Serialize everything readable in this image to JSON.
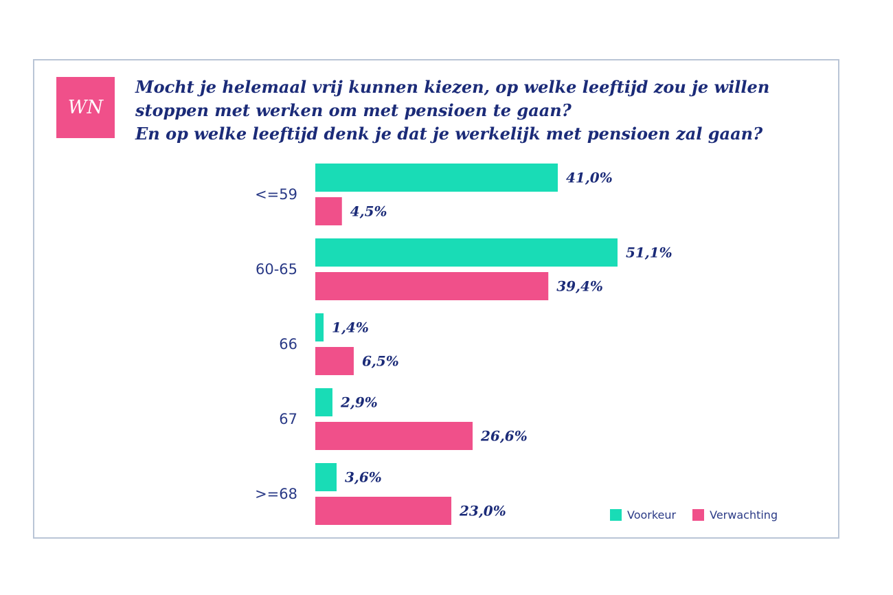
{
  "logo": {
    "text": "WN",
    "color": "#f0508a"
  },
  "title_lines": [
    "Mocht je helemaal vrij kunnen kiezen, op welke leeftijd zou je willen",
    "stoppen met werken om met pensioen te gaan?",
    "En op welke leeftijd denk je dat je werkelijk met pensioen zal gaan?"
  ],
  "legend": [
    {
      "label": "Voorkeur",
      "color": "#19dcb6"
    },
    {
      "label": "Verwachting",
      "color": "#f0508a"
    }
  ],
  "chart_data": {
    "type": "bar",
    "orientation": "horizontal",
    "title": "Mocht je helemaal vrij kunnen kiezen, op welke leeftijd zou je willen stoppen met werken om met pensioen te gaan? En op welke leeftijd denk je dat je werkelijk met pensioen zal gaan?",
    "categories": [
      "<=59",
      "60-65",
      "66",
      "67",
      ">=68"
    ],
    "series": [
      {
        "name": "Voorkeur",
        "color": "#19dcb6",
        "values": [
          41.0,
          51.1,
          1.4,
          2.9,
          3.6
        ],
        "labels": [
          "41,0%",
          "51,1%",
          "1,4%",
          "2,9%",
          "3,6%"
        ]
      },
      {
        "name": "Verwachting",
        "color": "#f0508a",
        "values": [
          4.5,
          39.4,
          6.5,
          26.6,
          23.0
        ],
        "labels": [
          "4,5%",
          "39,4%",
          "6,5%",
          "26,6%",
          "23,0%"
        ]
      }
    ],
    "xlim": [
      0,
      51.1
    ],
    "grid": false,
    "legend_position": "bottom-right"
  }
}
